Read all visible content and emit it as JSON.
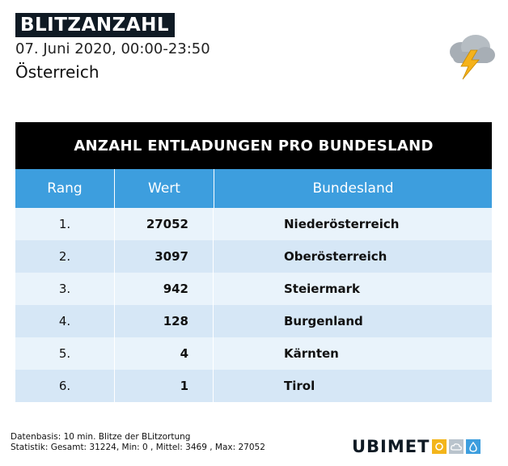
{
  "header": {
    "title": "BLITZANZAHL",
    "date": "07. Juni 2020, 00:00-23:50",
    "region": "Österreich",
    "icon": "thunderstorm-cloud-icon"
  },
  "table": {
    "title": "ANZAHL ENTLADUNGEN PRO BUNDESLAND",
    "columns": [
      "Rang",
      "Wert",
      "Bundesland"
    ],
    "rows": [
      {
        "rank": "1.",
        "value": "27052",
        "state": "Niederösterreich"
      },
      {
        "rank": "2.",
        "value": "3097",
        "state": "Oberösterreich"
      },
      {
        "rank": "3.",
        "value": "942",
        "state": "Steiermark"
      },
      {
        "rank": "4.",
        "value": "128",
        "state": "Burgenland"
      },
      {
        "rank": "5.",
        "value": "4",
        "state": "Kärnten"
      },
      {
        "rank": "6.",
        "value": "1",
        "state": "Tirol"
      }
    ]
  },
  "footer": {
    "line1": "Datenbasis: 10 min. Blitze der BLitzortung",
    "line2": "Statistik: Gesamt: 31224, Min: 0 , Mittel: 3469 , Max: 27052"
  },
  "brand": {
    "text_a": "UBI",
    "text_b": "MET",
    "colors": {
      "sun": "#f3b51a",
      "cloud": "#b9c3cc",
      "drop": "#3d9ede",
      "accent": "#3d9ede"
    }
  }
}
